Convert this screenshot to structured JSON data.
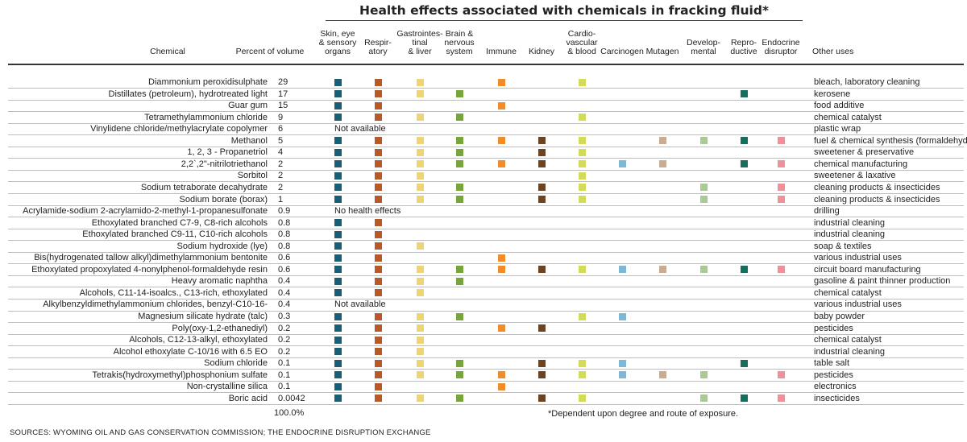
{
  "chart_data": {
    "type": "table",
    "title": "Health effects associated with chemicals in fracking fluid*",
    "columns": {
      "chemical": "Chemical",
      "percent": "Percent of volume",
      "other_uses": "Other uses",
      "effects": [
        {
          "key": "skin",
          "label": "Skin, eye\n& sensory\norgans",
          "color": "#1a5e75"
        },
        {
          "key": "resp",
          "label": "Respir-\natory",
          "color": "#b85a27"
        },
        {
          "key": "gastro",
          "label": "Gastrointes-\ntinal\n& liver",
          "color": "#ecd572"
        },
        {
          "key": "brain",
          "label": "Brain &\nnervous\nsystem",
          "color": "#79a33b"
        },
        {
          "key": "immune",
          "label": "Immune",
          "color": "#f08c2c"
        },
        {
          "key": "kidney",
          "label": "Kidney",
          "color": "#6b4423"
        },
        {
          "key": "cardio",
          "label": "Cardio-\nvascular\n& blood",
          "color": "#d2db5a"
        },
        {
          "key": "carcinogen",
          "label": "Carcinogen",
          "color": "#7fb8d5"
        },
        {
          "key": "mutagen",
          "label": "Mutagen",
          "color": "#c8ad94"
        },
        {
          "key": "developmental",
          "label": "Develop-\nmental",
          "color": "#a9ca95"
        },
        {
          "key": "reproductive",
          "label": "Repro-\nductive",
          "color": "#176e5c"
        },
        {
          "key": "endocrine",
          "label": "Endocrine\ndisruptor",
          "color": "#f0919a"
        }
      ]
    },
    "rows": [
      {
        "chemical": "Diammonium peroxidisulphate",
        "percent": "29",
        "effects": [
          "skin",
          "resp",
          "gastro",
          "immune",
          "cardio"
        ],
        "use": "bleach, laboratory cleaning"
      },
      {
        "chemical": "Distillates (petroleum), hydrotreated light",
        "percent": "17",
        "effects": [
          "skin",
          "resp",
          "gastro",
          "brain",
          "reproductive"
        ],
        "use": "kerosene"
      },
      {
        "chemical": "Guar gum",
        "percent": "15",
        "effects": [
          "skin",
          "resp",
          "immune"
        ],
        "use": "food additive"
      },
      {
        "chemical": "Tetramethylammonium chloride",
        "percent": "9",
        "effects": [
          "skin",
          "resp",
          "gastro",
          "brain",
          "cardio"
        ],
        "use": "chemical catalyst"
      },
      {
        "chemical": "Vinylidene chloride/methylacrylate copolymer",
        "percent": "6",
        "note": "Not available",
        "effects": [],
        "use": "plastic wrap"
      },
      {
        "chemical": "Methanol",
        "percent": "5",
        "effects": [
          "skin",
          "resp",
          "gastro",
          "brain",
          "immune",
          "kidney",
          "cardio",
          "mutagen",
          "developmental",
          "reproductive",
          "endocrine"
        ],
        "use": "fuel & chemical synthesis (formaldehyde)"
      },
      {
        "chemical": "1, 2, 3 - Propanetriol",
        "percent": "4",
        "effects": [
          "skin",
          "resp",
          "gastro",
          "brain",
          "kidney",
          "cardio"
        ],
        "use": "sweetener & preservative"
      },
      {
        "chemical": "2,2`,2\"-nitrilotriethanol",
        "percent": "2",
        "effects": [
          "skin",
          "resp",
          "gastro",
          "brain",
          "immune",
          "kidney",
          "cardio",
          "carcinogen",
          "mutagen",
          "reproductive",
          "endocrine"
        ],
        "use": "chemical manufacturing"
      },
      {
        "chemical": "Sorbitol",
        "percent": "2",
        "effects": [
          "skin",
          "resp",
          "gastro",
          "cardio"
        ],
        "use": "sweetener & laxative"
      },
      {
        "chemical": "Sodium tetraborate decahydrate",
        "percent": "2",
        "effects": [
          "skin",
          "resp",
          "gastro",
          "brain",
          "kidney",
          "cardio",
          "developmental",
          "endocrine"
        ],
        "use": "cleaning products & insecticides"
      },
      {
        "chemical": "Sodium borate (borax)",
        "percent": "1",
        "effects": [
          "skin",
          "resp",
          "gastro",
          "brain",
          "kidney",
          "cardio",
          "developmental",
          "endocrine"
        ],
        "use": "cleaning products & insecticides"
      },
      {
        "chemical": "Acrylamide-sodium 2-acrylamido-2-methyl-1-propanesulfonate",
        "percent": "0.9",
        "note": "No health effects",
        "effects": [],
        "use": "drilling"
      },
      {
        "chemical": "Ethoxylated branched C7-9, C8-rich alcohols",
        "percent": "0.8",
        "effects": [
          "skin",
          "resp"
        ],
        "use": "industrial cleaning"
      },
      {
        "chemical": "Ethoxylated branched C9-11, C10-rich alcohols",
        "percent": "0.8",
        "effects": [
          "skin",
          "resp"
        ],
        "use": "industrial cleaning"
      },
      {
        "chemical": "Sodium hydroxide (lye)",
        "percent": "0.8",
        "effects": [
          "skin",
          "resp",
          "gastro"
        ],
        "use": "soap & textiles"
      },
      {
        "chemical": "Bis(hydrogenated tallow alkyl)dimethylammonium bentonite",
        "percent": "0.6",
        "effects": [
          "skin",
          "resp",
          "immune"
        ],
        "use": "various industrial uses"
      },
      {
        "chemical": "Ethoxylated propoxylated 4-nonylphenol-formaldehyde resin",
        "percent": "0.6",
        "effects": [
          "skin",
          "resp",
          "gastro",
          "brain",
          "immune",
          "kidney",
          "cardio",
          "carcinogen",
          "mutagen",
          "developmental",
          "reproductive",
          "endocrine"
        ],
        "use": "circuit board manufacturing"
      },
      {
        "chemical": "Heavy aromatic naphtha",
        "percent": "0.4",
        "effects": [
          "skin",
          "resp",
          "gastro",
          "brain"
        ],
        "use": "gasoline & paint thinner production"
      },
      {
        "chemical": "Alcohols, C11-14-isoalcs., C13-rich, ethoxylated",
        "percent": "0.4",
        "effects": [
          "skin",
          "resp",
          "gastro"
        ],
        "use": "chemical catalyst"
      },
      {
        "chemical": "Alkylbenzyldimethylammonium chlorides, benzyl-C10-16-",
        "percent": "0.4",
        "note": "Not available",
        "effects": [],
        "use": "various industrial uses"
      },
      {
        "chemical": "Magnesium silicate hydrate (talc)",
        "percent": "0.3",
        "effects": [
          "skin",
          "resp",
          "gastro",
          "brain",
          "cardio",
          "carcinogen"
        ],
        "use": "baby powder"
      },
      {
        "chemical": "Poly(oxy-1,2-ethanediyl)",
        "percent": "0.2",
        "effects": [
          "skin",
          "resp",
          "gastro",
          "immune",
          "kidney"
        ],
        "use": "pesticides"
      },
      {
        "chemical": "Alcohols, C12-13-alkyl, ethoxylated",
        "percent": "0.2",
        "effects": [
          "skin",
          "resp",
          "gastro"
        ],
        "use": "chemical catalyst"
      },
      {
        "chemical": "Alcohol ethoxylate C-10/16 with 6.5 EO",
        "percent": "0.2",
        "effects": [
          "skin",
          "resp",
          "gastro"
        ],
        "use": "industrial cleaning"
      },
      {
        "chemical": "Sodium chloride",
        "percent": "0.1",
        "effects": [
          "skin",
          "resp",
          "gastro",
          "brain",
          "kidney",
          "cardio",
          "carcinogen",
          "reproductive"
        ],
        "use": "table salt"
      },
      {
        "chemical": "Tetrakis(hydroxymethyl)phosphonium sulfate",
        "percent": "0.1",
        "effects": [
          "skin",
          "resp",
          "gastro",
          "brain",
          "immune",
          "kidney",
          "cardio",
          "carcinogen",
          "mutagen",
          "developmental",
          "endocrine"
        ],
        "use": "pesticides"
      },
      {
        "chemical": "Non-crystalline silica",
        "percent": "0.1",
        "effects": [
          "skin",
          "resp",
          "immune"
        ],
        "use": "electronics"
      },
      {
        "chemical": "Boric acid",
        "percent": "0.0042",
        "effects": [
          "skin",
          "resp",
          "gastro",
          "brain",
          "kidney",
          "cardio",
          "developmental",
          "reproductive",
          "endocrine"
        ],
        "use": "insecticides"
      }
    ],
    "total": "100.0%",
    "footnote": "*Dependent upon degree and route of exposure.",
    "source": "SOURCES: WYOMING OIL AND GAS CONSERVATION COMMISSION; THE ENDOCRINE DISRUPTION EXCHANGE"
  }
}
